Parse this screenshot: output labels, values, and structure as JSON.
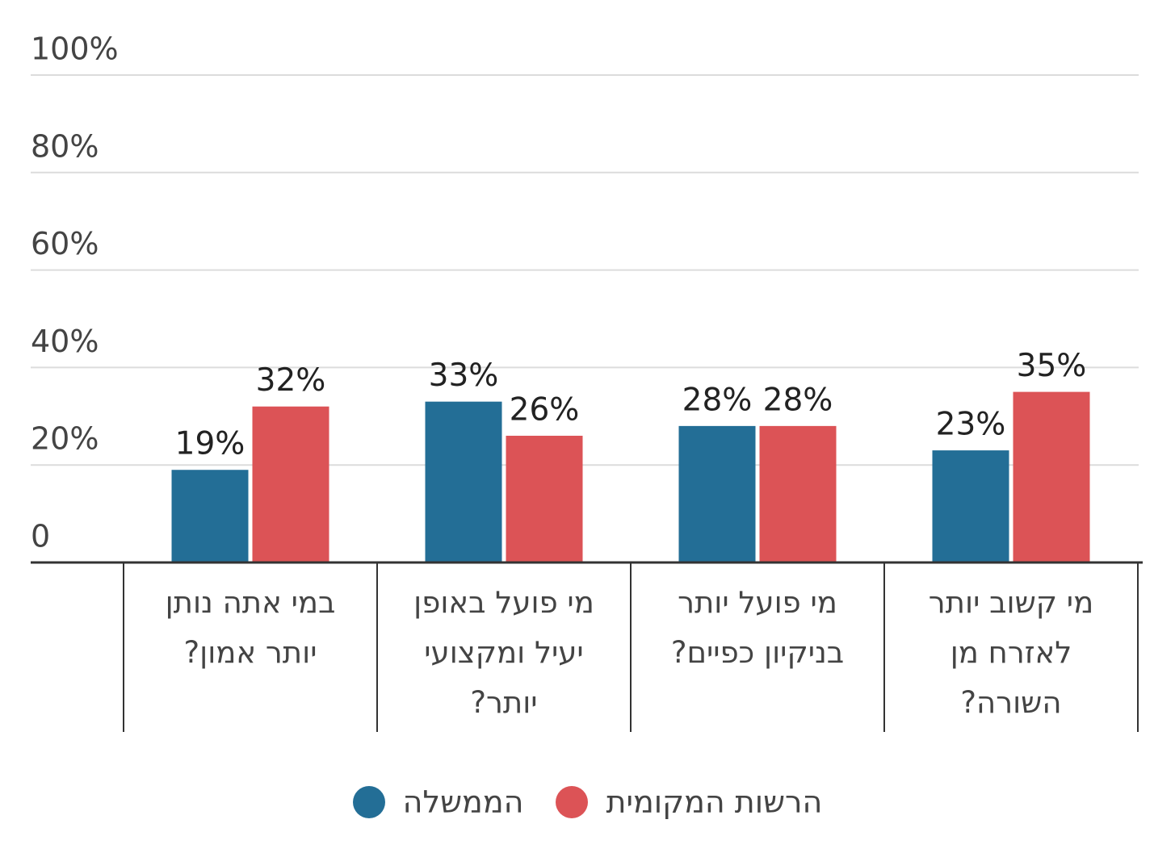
{
  "chart_data": {
    "type": "bar",
    "categories": [
      "במי אתה נותן יותר אמון?",
      "מי פועל באופן יעיל ומקצועי יותר?",
      "מי פועל יותר בניקיון כפיים?",
      "מי קשוב יותר לאזרח מן השורה?"
    ],
    "series": [
      {
        "name": "הממשלה",
        "color": "#236e96",
        "values": [
          19,
          33,
          28,
          23
        ],
        "value_labels": [
          "19%",
          "33%",
          "28%",
          "23%"
        ]
      },
      {
        "name": "הרשות המקומית",
        "color": "#dc5356",
        "values": [
          32,
          26,
          28,
          35
        ],
        "value_labels": [
          "32%",
          "26%",
          "28%",
          "35%"
        ]
      }
    ],
    "ylim": [
      0,
      100
    ],
    "yticks": [
      0,
      {
        "value": 20,
        "label": "20%"
      },
      {
        "value": 40,
        "label": "40%"
      },
      {
        "value": 60,
        "label": "60%"
      },
      {
        "value": 80,
        "label": "80%"
      },
      {
        "value": 100,
        "label": "100%"
      }
    ],
    "grid": true
  }
}
